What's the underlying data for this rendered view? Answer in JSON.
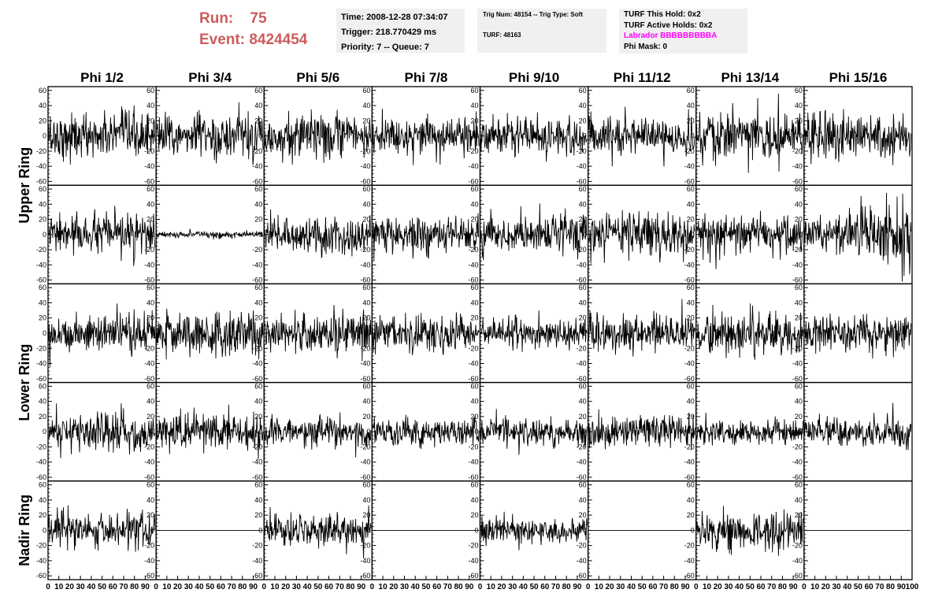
{
  "header": {
    "run_label": "Run:",
    "run_value": "75",
    "event_label": "Event:",
    "event_value": "8424454",
    "colors": {
      "run_event": "#cd5c5c",
      "labrador": "#ff00ff",
      "box_bg": "#f0f0f0"
    }
  },
  "info_boxes": {
    "time": "Time: 2008-12-28 07:34:07",
    "trigger": "Trigger: 218.770429 ms",
    "priority": "Priority: 7 -- Queue: 7",
    "trig_num": "Trig Num: 48154 -- Trig Type: Soft",
    "turf": "TURF: 48163",
    "turf_this_hold": "TURF This Hold: 0x2",
    "turf_active_holds": "TURF Active Holds: 0x2",
    "labrador": "Labrador BBBBBBBBBA",
    "phi_mask": "Phi Mask: 0"
  },
  "chart_data": {
    "type": "line",
    "columns": [
      "Phi 1/2",
      "Phi 3/4",
      "Phi 5/6",
      "Phi 7/8",
      "Phi 9/10",
      "Phi 11/12",
      "Phi 13/14",
      "Phi 15/16"
    ],
    "ring_labels": [
      {
        "text": "Upper Ring",
        "rows": [
          0,
          1
        ]
      },
      {
        "text": "Lower Ring",
        "rows": [
          2,
          3
        ]
      },
      {
        "text": "Nadir Ring",
        "rows": [
          4
        ]
      }
    ],
    "ylim": [
      -65,
      65
    ],
    "xlim": [
      0,
      100
    ],
    "yticks": [
      -60,
      -40,
      -20,
      0,
      20,
      40,
      60
    ],
    "xticks": [
      0,
      10,
      20,
      30,
      40,
      50,
      60,
      70,
      80,
      90,
      100
    ],
    "panel_amplitude": [
      [
        20,
        20,
        20,
        17,
        18,
        16,
        22,
        20
      ],
      [
        17,
        3,
        17,
        17,
        17,
        19,
        17,
        26
      ],
      [
        17,
        19,
        19,
        17,
        13,
        16,
        18,
        15
      ],
      [
        17,
        17,
        13,
        12,
        12,
        14,
        12,
        14
      ],
      [
        16,
        0,
        14,
        0,
        12,
        0,
        17,
        0
      ]
    ],
    "grid": false,
    "legend": "none"
  }
}
